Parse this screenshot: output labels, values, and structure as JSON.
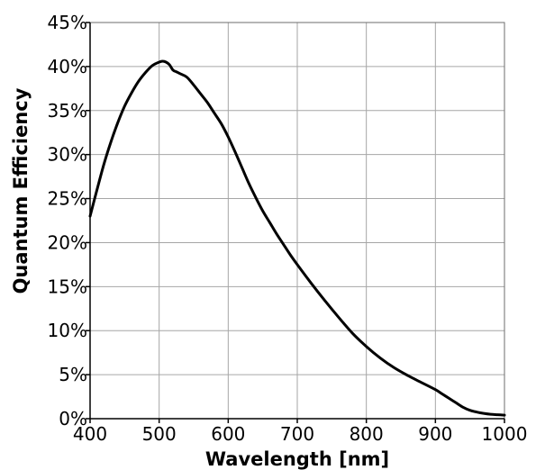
{
  "chart_data": {
    "type": "line",
    "title": "",
    "xlabel": "Wavelength [nm]",
    "ylabel": "Quantum Efficiency",
    "xlim": [
      400,
      1000
    ],
    "ylim": [
      0,
      45
    ],
    "x_ticks": [
      400,
      500,
      600,
      700,
      800,
      900,
      1000
    ],
    "x_tick_labels": [
      "400",
      "500",
      "600",
      "700",
      "800",
      "900",
      "1000"
    ],
    "y_ticks": [
      0,
      5,
      10,
      15,
      20,
      25,
      30,
      35,
      40,
      45
    ],
    "y_tick_labels": [
      "0%",
      "5%",
      "10%",
      "15%",
      "20%",
      "25%",
      "30%",
      "35%",
      "40%",
      "45%"
    ],
    "grid": true,
    "legend": "none",
    "line_color": "#000000",
    "series": [
      {
        "x": [
          400,
          410,
          420,
          430,
          440,
          450,
          460,
          470,
          480,
          490,
          500,
          505,
          510,
          515,
          520,
          525,
          530,
          540,
          550,
          560,
          570,
          580,
          590,
          600,
          610,
          620,
          630,
          640,
          650,
          660,
          670,
          680,
          690,
          700,
          720,
          740,
          760,
          780,
          800,
          820,
          840,
          860,
          880,
          900,
          910,
          920,
          930,
          940,
          950,
          960,
          970,
          980,
          990,
          1000
        ],
        "values": [
          23.0,
          26.0,
          28.9,
          31.4,
          33.6,
          35.5,
          37.0,
          38.3,
          39.3,
          40.1,
          40.5,
          40.6,
          40.5,
          40.2,
          39.6,
          39.4,
          39.2,
          38.8,
          37.9,
          36.9,
          35.9,
          34.7,
          33.5,
          32.0,
          30.3,
          28.5,
          26.7,
          25.1,
          23.6,
          22.3,
          21.0,
          19.8,
          18.6,
          17.5,
          15.4,
          13.4,
          11.5,
          9.7,
          8.2,
          6.9,
          5.8,
          4.9,
          4.1,
          3.3,
          2.8,
          2.3,
          1.8,
          1.3,
          0.95,
          0.75,
          0.6,
          0.5,
          0.45,
          0.4
        ]
      }
    ]
  }
}
